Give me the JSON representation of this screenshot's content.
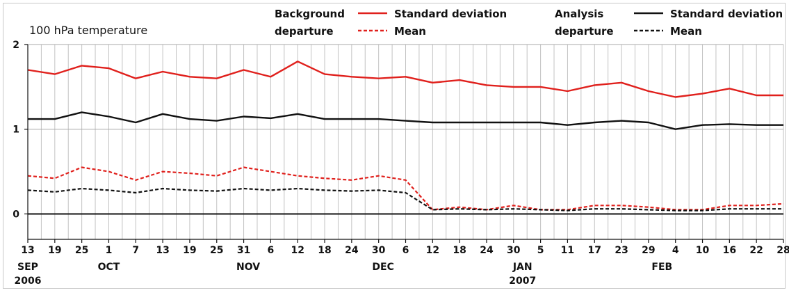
{
  "chart_data": {
    "type": "line",
    "title": "100 hPa temperature",
    "ylim": [
      -0.3,
      2.0
    ],
    "yticks": [
      0,
      1,
      2
    ],
    "grid": true,
    "legend_placement": "top",
    "legend": {
      "group1_label": [
        "Background",
        "departure"
      ],
      "group2_label": [
        "Analysis",
        "departure"
      ],
      "entries": [
        {
          "group": 1,
          "label": "Standard deviation",
          "color": "#e0201c",
          "dash": false
        },
        {
          "group": 1,
          "label": "Mean",
          "color": "#e0201c",
          "dash": true
        },
        {
          "group": 2,
          "label": "Standard deviation",
          "color": "#111111",
          "dash": false
        },
        {
          "group": 2,
          "label": "Mean",
          "color": "#111111",
          "dash": true
        }
      ]
    },
    "xaxis": {
      "start_date": "2006-09-13",
      "end_date": "2007-02-28",
      "ticks": [
        {
          "date": "2006-09-13",
          "label": "13"
        },
        {
          "date": "2006-09-19",
          "label": "19"
        },
        {
          "date": "2006-09-25",
          "label": "25"
        },
        {
          "date": "2006-10-01",
          "label": "1"
        },
        {
          "date": "2006-10-07",
          "label": "7"
        },
        {
          "date": "2006-10-13",
          "label": "13"
        },
        {
          "date": "2006-10-19",
          "label": "19"
        },
        {
          "date": "2006-10-25",
          "label": "25"
        },
        {
          "date": "2006-10-31",
          "label": "31"
        },
        {
          "date": "2006-11-06",
          "label": "6"
        },
        {
          "date": "2006-11-12",
          "label": "12"
        },
        {
          "date": "2006-11-18",
          "label": "18"
        },
        {
          "date": "2006-11-24",
          "label": "24"
        },
        {
          "date": "2006-11-30",
          "label": "30"
        },
        {
          "date": "2006-12-06",
          "label": "6"
        },
        {
          "date": "2006-12-12",
          "label": "12"
        },
        {
          "date": "2006-12-18",
          "label": "18"
        },
        {
          "date": "2006-12-24",
          "label": "24"
        },
        {
          "date": "2006-12-30",
          "label": "30"
        },
        {
          "date": "2007-01-05",
          "label": "5"
        },
        {
          "date": "2007-01-11",
          "label": "11"
        },
        {
          "date": "2007-01-17",
          "label": "17"
        },
        {
          "date": "2007-01-23",
          "label": "23"
        },
        {
          "date": "2007-01-29",
          "label": "29"
        },
        {
          "date": "2007-02-04",
          "label": "4"
        },
        {
          "date": "2007-02-10",
          "label": "10"
        },
        {
          "date": "2007-02-16",
          "label": "16"
        },
        {
          "date": "2007-02-22",
          "label": "22"
        },
        {
          "date": "2007-02-28",
          "label": "28"
        }
      ],
      "month_labels": [
        {
          "date": "2006-09-13",
          "label": "SEP",
          "year": "2006"
        },
        {
          "date": "2006-10-01",
          "label": "OCT",
          "year": ""
        },
        {
          "date": "2006-11-01",
          "label": "NOV",
          "year": ""
        },
        {
          "date": "2006-12-01",
          "label": "DEC",
          "year": ""
        },
        {
          "date": "2007-01-01",
          "label": "JAN",
          "year": "2007"
        },
        {
          "date": "2007-02-01",
          "label": "FEB",
          "year": ""
        }
      ]
    },
    "series": [
      {
        "name": "Background departure – Standard deviation",
        "color": "#e0201c",
        "dash": false,
        "x": [
          "2006-09-13",
          "2006-09-19",
          "2006-09-25",
          "2006-10-01",
          "2006-10-07",
          "2006-10-13",
          "2006-10-19",
          "2006-10-25",
          "2006-10-31",
          "2006-11-06",
          "2006-11-12",
          "2006-11-18",
          "2006-11-24",
          "2006-11-30",
          "2006-12-06",
          "2006-12-12",
          "2006-12-18",
          "2006-12-24",
          "2006-12-30",
          "2007-01-05",
          "2007-01-11",
          "2007-01-17",
          "2007-01-23",
          "2007-01-29",
          "2007-02-04",
          "2007-02-10",
          "2007-02-16",
          "2007-02-22",
          "2007-02-28"
        ],
        "y": [
          1.7,
          1.65,
          1.75,
          1.72,
          1.6,
          1.68,
          1.62,
          1.6,
          1.7,
          1.62,
          1.8,
          1.65,
          1.62,
          1.6,
          1.62,
          1.55,
          1.58,
          1.52,
          1.5,
          1.5,
          1.45,
          1.52,
          1.55,
          1.45,
          1.38,
          1.42,
          1.48,
          1.4,
          1.4
        ]
      },
      {
        "name": "Background departure – Mean",
        "color": "#e0201c",
        "dash": true,
        "x": [
          "2006-09-13",
          "2006-09-19",
          "2006-09-25",
          "2006-10-01",
          "2006-10-07",
          "2006-10-13",
          "2006-10-19",
          "2006-10-25",
          "2006-10-31",
          "2006-11-06",
          "2006-11-12",
          "2006-11-18",
          "2006-11-24",
          "2006-11-30",
          "2006-12-06",
          "2006-12-12",
          "2006-12-18",
          "2006-12-24",
          "2006-12-30",
          "2007-01-05",
          "2007-01-11",
          "2007-01-17",
          "2007-01-23",
          "2007-01-29",
          "2007-02-04",
          "2007-02-10",
          "2007-02-16",
          "2007-02-22",
          "2007-02-28"
        ],
        "y": [
          0.45,
          0.42,
          0.55,
          0.5,
          0.4,
          0.5,
          0.48,
          0.45,
          0.55,
          0.5,
          0.45,
          0.42,
          0.4,
          0.45,
          0.4,
          0.05,
          0.08,
          0.05,
          0.1,
          0.05,
          0.05,
          0.1,
          0.1,
          0.08,
          0.05,
          0.05,
          0.1,
          0.1,
          0.12
        ]
      },
      {
        "name": "Analysis departure – Standard deviation",
        "color": "#111111",
        "dash": false,
        "x": [
          "2006-09-13",
          "2006-09-19",
          "2006-09-25",
          "2006-10-01",
          "2006-10-07",
          "2006-10-13",
          "2006-10-19",
          "2006-10-25",
          "2006-10-31",
          "2006-11-06",
          "2006-11-12",
          "2006-11-18",
          "2006-11-24",
          "2006-11-30",
          "2006-12-06",
          "2006-12-12",
          "2006-12-18",
          "2006-12-24",
          "2006-12-30",
          "2007-01-05",
          "2007-01-11",
          "2007-01-17",
          "2007-01-23",
          "2007-01-29",
          "2007-02-04",
          "2007-02-10",
          "2007-02-16",
          "2007-02-22",
          "2007-02-28"
        ],
        "y": [
          1.12,
          1.12,
          1.2,
          1.15,
          1.08,
          1.18,
          1.12,
          1.1,
          1.15,
          1.13,
          1.18,
          1.12,
          1.12,
          1.12,
          1.1,
          1.08,
          1.08,
          1.08,
          1.08,
          1.08,
          1.05,
          1.08,
          1.1,
          1.08,
          1.0,
          1.05,
          1.06,
          1.05,
          1.05
        ]
      },
      {
        "name": "Analysis departure – Mean",
        "color": "#111111",
        "dash": true,
        "x": [
          "2006-09-13",
          "2006-09-19",
          "2006-09-25",
          "2006-10-01",
          "2006-10-07",
          "2006-10-13",
          "2006-10-19",
          "2006-10-25",
          "2006-10-31",
          "2006-11-06",
          "2006-11-12",
          "2006-11-18",
          "2006-11-24",
          "2006-11-30",
          "2006-12-06",
          "2006-12-12",
          "2006-12-18",
          "2006-12-24",
          "2006-12-30",
          "2007-01-05",
          "2007-01-11",
          "2007-01-17",
          "2007-01-23",
          "2007-01-29",
          "2007-02-04",
          "2007-02-10",
          "2007-02-16",
          "2007-02-22",
          "2007-02-28"
        ],
        "y": [
          0.28,
          0.26,
          0.3,
          0.28,
          0.25,
          0.3,
          0.28,
          0.27,
          0.3,
          0.28,
          0.3,
          0.28,
          0.27,
          0.28,
          0.25,
          0.05,
          0.06,
          0.05,
          0.06,
          0.05,
          0.04,
          0.06,
          0.06,
          0.05,
          0.04,
          0.04,
          0.06,
          0.06,
          0.06
        ]
      }
    ]
  }
}
